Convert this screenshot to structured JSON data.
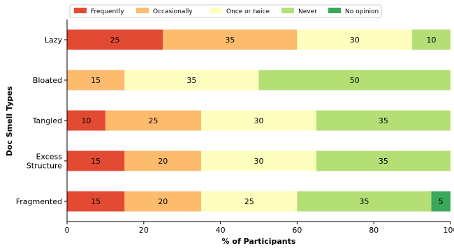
{
  "chart_data": {
    "type": "bar",
    "orientation": "horizontal",
    "stacked": true,
    "xlabel": "% of Participants",
    "ylabel": "Doc Smell Types",
    "xlim": [
      0,
      100
    ],
    "xticks": [
      "0",
      "20",
      "40",
      "60",
      "80",
      "100"
    ],
    "grid": false,
    "legend_position": "top",
    "categories": [
      [
        "Lazy"
      ],
      [
        "Bloated"
      ],
      [
        "Tangled"
      ],
      [
        "Excess",
        "Structure"
      ],
      [
        "Fragmented"
      ]
    ],
    "series": [
      {
        "name": "Frequently",
        "color": "#e34a33",
        "values": [
          25,
          0,
          10,
          15,
          15
        ]
      },
      {
        "name": "Occasionally",
        "color": "#fdbb6e",
        "values": [
          35,
          15,
          25,
          20,
          20
        ]
      },
      {
        "name": "Once or twice",
        "color": "#fefebe",
        "values": [
          30,
          35,
          30,
          30,
          25
        ]
      },
      {
        "name": "Never",
        "color": "#b3df75",
        "values": [
          10,
          50,
          35,
          35,
          35
        ]
      },
      {
        "name": "No opinion",
        "color": "#3aa75a",
        "values": [
          0,
          0,
          0,
          0,
          5
        ]
      }
    ]
  }
}
